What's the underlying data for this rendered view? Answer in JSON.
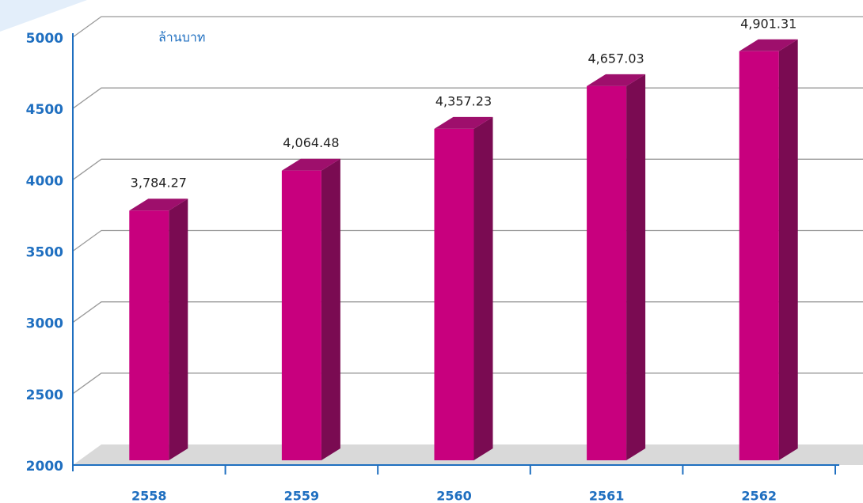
{
  "chart_data": {
    "type": "bar3d",
    "annotation": "ล้านบาท",
    "categories": [
      "2558",
      "2559",
      "2560",
      "2561",
      "2562"
    ],
    "values": [
      3784.27,
      4064.48,
      4357.23,
      4657.03,
      4901.31
    ],
    "value_labels": [
      "3,784.27",
      "4,064.48",
      "4,357.23",
      "4,657.03",
      "4,901.31"
    ],
    "color": "#c8007e",
    "ylim": [
      2000,
      5000
    ],
    "yticks": [
      2000,
      2500,
      3000,
      3500,
      4000,
      4500,
      5000
    ],
    "grid": true
  }
}
